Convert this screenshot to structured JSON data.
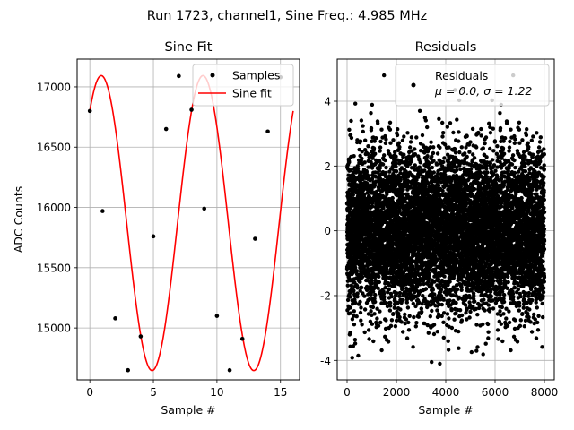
{
  "suptitle": "Run 1723, channel1, Sine Freq.: 4.985 MHz",
  "chart_data": [
    {
      "type": "line",
      "title": "Sine Fit",
      "xlabel": "Sample #",
      "ylabel": "ADC Counts",
      "xlim": [
        -1,
        16.5
      ],
      "ylim": [
        14570,
        17230
      ],
      "x_ticks": [
        0,
        5,
        10,
        15
      ],
      "y_ticks": [
        15000,
        15500,
        16000,
        16500,
        17000
      ],
      "grid": true,
      "legend_position": "top-right",
      "series": [
        {
          "name": "Samples",
          "kind": "scatter",
          "color": "#000000",
          "x": [
            0,
            1,
            2,
            3,
            4,
            5,
            6,
            7,
            8,
            9,
            10,
            11,
            12,
            13,
            14,
            15
          ],
          "y": [
            16800,
            15970,
            15080,
            14650,
            14930,
            15760,
            16650,
            17090,
            16810,
            15990,
            15100,
            14650,
            14910,
            15740,
            16630,
            17080
          ]
        },
        {
          "name": "Sine fit",
          "kind": "line",
          "color": "#ff0000",
          "amplitude": 1223,
          "offset": 15870,
          "period": 8.0,
          "phase": 0.864,
          "x_range": [
            0,
            16
          ]
        }
      ]
    },
    {
      "type": "scatter",
      "title": "Residuals",
      "xlabel": "Sample #",
      "ylabel": "",
      "xlim": [
        -400,
        8400
      ],
      "ylim": [
        -4.6,
        5.3
      ],
      "x_ticks": [
        0,
        2000,
        4000,
        6000,
        8000
      ],
      "y_ticks": [
        -4,
        -2,
        0,
        2,
        4
      ],
      "grid": true,
      "legend_position": "top-right",
      "series": [
        {
          "name": "Residuals",
          "legend_line2": "μ = 0.0, σ = 1.22",
          "color": "#000000",
          "n_points": 8000,
          "x_range": [
            0,
            8000
          ],
          "mean": 0.0,
          "std": 1.22
        }
      ]
    }
  ]
}
